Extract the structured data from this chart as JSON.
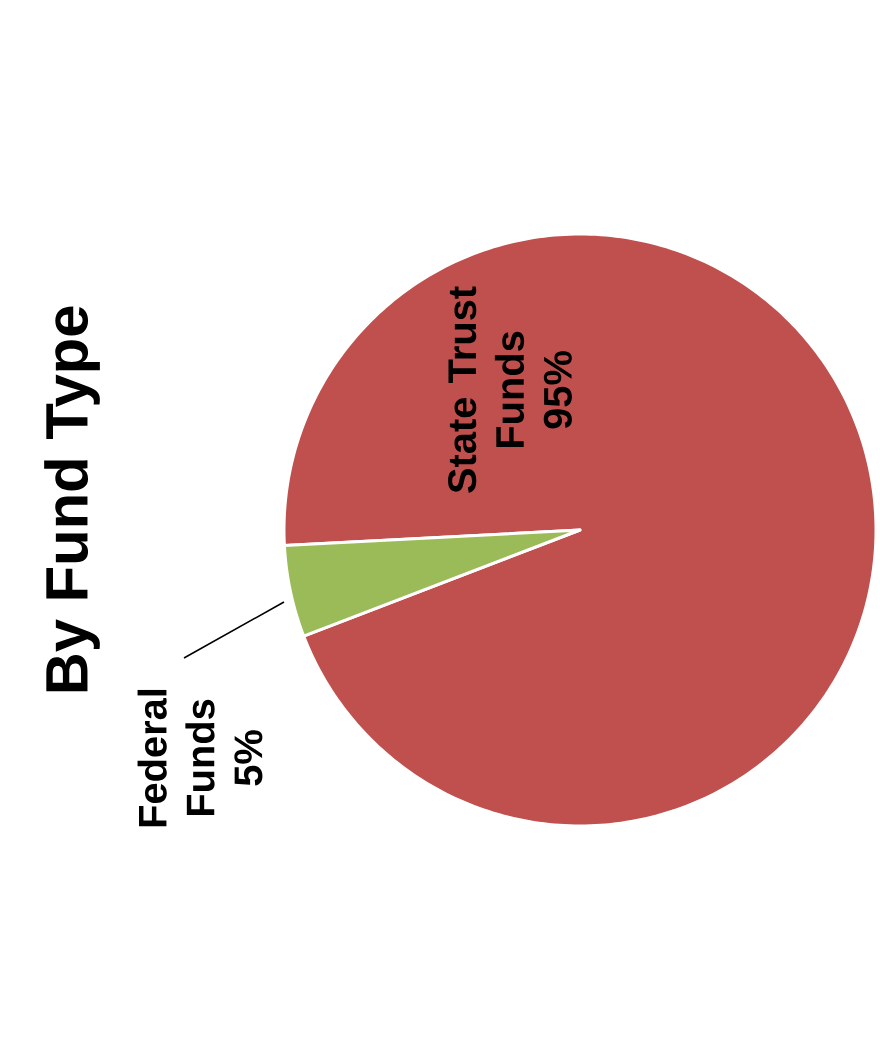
{
  "chart_data": {
    "type": "pie",
    "title": "By Fund Type",
    "categories": [
      "State Trust Funds",
      "Federal Funds"
    ],
    "values": [
      95,
      5
    ],
    "colors": [
      "#c0504d",
      "#9bbb59"
    ],
    "value_labels": [
      "95%",
      "5%"
    ]
  }
}
